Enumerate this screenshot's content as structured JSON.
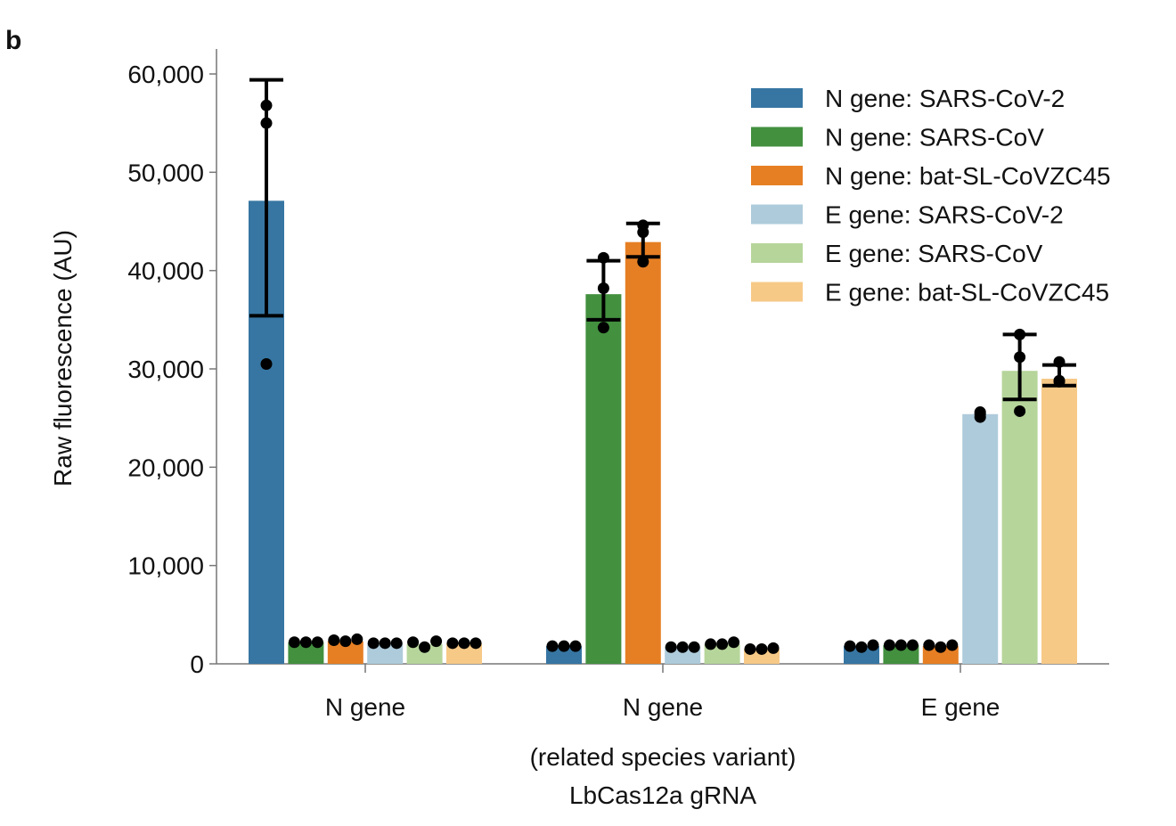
{
  "panel_label": "b",
  "chart_data": {
    "type": "bar",
    "ylabel": "Raw fluorescence (AU)",
    "xlabel": "LbCas12a gRNA",
    "ylim": [
      0,
      60000
    ],
    "yticks": [
      0,
      10000,
      20000,
      30000,
      40000,
      50000,
      60000
    ],
    "ytick_labels": [
      "0",
      "10,000",
      "20,000",
      "30,000",
      "40,000",
      "50,000",
      "60,000"
    ],
    "categories": [
      "N gene",
      "N gene\n(related species variant)",
      "E gene"
    ],
    "category_labels": [
      [
        "N gene"
      ],
      [
        "N gene",
        "(related species variant)"
      ],
      [
        "E gene"
      ]
    ],
    "grid": false,
    "legend_position": "top-right",
    "series": [
      {
        "name": "N gene: SARS-CoV-2",
        "color": "#3776a3",
        "values": [
          47100,
          1800,
          1800
        ],
        "err": [
          [
            35400,
            59400
          ],
          null,
          null
        ],
        "points": [
          [
            56800,
            55000,
            30500
          ],
          [
            1800,
            1800,
            1800
          ],
          [
            1800,
            1700,
            1900
          ]
        ]
      },
      {
        "name": "N gene: SARS-CoV",
        "color": "#43903f",
        "values": [
          2200,
          37600,
          1900
        ],
        "err": [
          null,
          [
            35000,
            41000
          ],
          null
        ],
        "points": [
          [
            2200,
            2200,
            2200
          ],
          [
            41300,
            38200,
            34200
          ],
          [
            1900,
            1900,
            1900
          ]
        ]
      },
      {
        "name": "N gene: bat-SL-CoVZC45",
        "color": "#e67f24",
        "values": [
          2300,
          42900,
          1800
        ],
        "err": [
          null,
          [
            41400,
            44800
          ],
          null
        ],
        "points": [
          [
            2400,
            2300,
            2500
          ],
          [
            44600,
            43900,
            40900
          ],
          [
            1900,
            1700,
            1900
          ]
        ]
      },
      {
        "name": "E gene: SARS-CoV-2",
        "color": "#aecbdb",
        "values": [
          2100,
          1700,
          25400
        ],
        "err": [
          null,
          null,
          null
        ],
        "points": [
          [
            2100,
            2100,
            2100
          ],
          [
            1700,
            1700,
            1700
          ],
          [
            25400,
            25100,
            25600
          ]
        ]
      },
      {
        "name": "E gene: SARS-CoV",
        "color": "#b6d59b",
        "values": [
          2000,
          2000,
          29800
        ],
        "err": [
          null,
          null,
          [
            26900,
            33500
          ]
        ],
        "points": [
          [
            2200,
            1700,
            2300
          ],
          [
            2000,
            2000,
            2200
          ],
          [
            33500,
            31200,
            25700
          ]
        ]
      },
      {
        "name": "E gene: bat-SL-CoVZC45",
        "color": "#f7c987",
        "values": [
          2100,
          1500,
          29000
        ],
        "err": [
          null,
          null,
          [
            28300,
            30400
          ]
        ],
        "points": [
          [
            2100,
            2100,
            2100
          ],
          [
            1500,
            1500,
            1600
          ],
          [
            28800,
            30700,
            28700
          ]
        ]
      }
    ]
  }
}
